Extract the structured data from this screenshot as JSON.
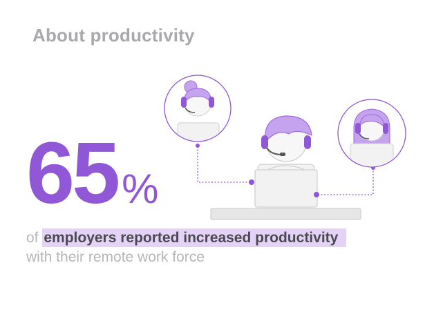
{
  "title": "About productivity",
  "stat": {
    "number": "65",
    "unit": "%"
  },
  "caption": {
    "prefix": "of ",
    "highlight": "employers reported increased productivity",
    "line2": "with their remote work force"
  },
  "colors": {
    "accent": "#9057d6",
    "accent_light": "#c6a3ef",
    "highlight_bg": "#e4d3f7",
    "title_gray": "#a9a9ad"
  },
  "icons": [
    "agent-main-icon",
    "agent-left-icon",
    "agent-right-icon",
    "laptop-icon",
    "headset-icon"
  ]
}
